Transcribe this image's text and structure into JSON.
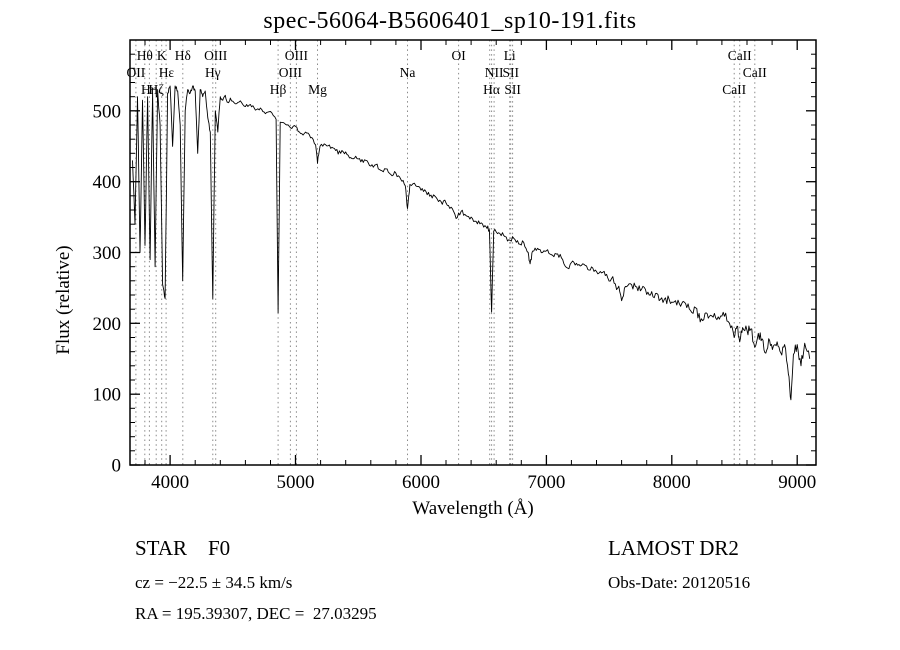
{
  "chart_data": {
    "type": "line",
    "title": "spec-56064-B5606401_sp10-191.fits",
    "xlabel": "Wavelength (Å)",
    "ylabel": "Flux (relative)",
    "xlim": [
      3680,
      9150
    ],
    "ylim": [
      0,
      600
    ],
    "x_ticks": [
      4000,
      5000,
      6000,
      7000,
      8000,
      9000
    ],
    "y_ticks": [
      0,
      100,
      200,
      300,
      400,
      500
    ],
    "x_minor_step": 200,
    "y_minor_step": 20,
    "grid": false,
    "line_color": "#000000",
    "marker_line_color": "#8a8a8a",
    "legend": "none",
    "noise_texture": {
      "blue": 2.5,
      "mid": 3.5,
      "red": 7
    },
    "spectral_lines": [
      3727,
      3798,
      3835,
      3889,
      3933,
      3968,
      4101,
      4340,
      4363,
      4861,
      4959,
      5007,
      5175,
      5893,
      6300,
      6548,
      6563,
      6583,
      6708,
      6716,
      6731,
      8498,
      8542,
      8662
    ],
    "line_labels": [
      {
        "text": "Hθ",
        "wavelength": 3798,
        "row": 1
      },
      {
        "text": "K",
        "wavelength": 3933,
        "row": 1
      },
      {
        "text": "Hδ",
        "wavelength": 4101,
        "row": 1
      },
      {
        "text": "OIII",
        "wavelength": 4363,
        "row": 1
      },
      {
        "text": "OIII",
        "wavelength": 5007,
        "row": 1
      },
      {
        "text": "OI",
        "wavelength": 6300,
        "row": 1
      },
      {
        "text": "Li",
        "wavelength": 6708,
        "row": 1
      },
      {
        "text": "CaII",
        "wavelength": 8542,
        "row": 1
      },
      {
        "text": "OII",
        "wavelength": 3727,
        "row": 2
      },
      {
        "text": "Hε",
        "wavelength": 3970,
        "row": 2
      },
      {
        "text": "Hγ",
        "wavelength": 4340,
        "row": 2
      },
      {
        "text": "OIII",
        "wavelength": 4959,
        "row": 2
      },
      {
        "text": "Na",
        "wavelength": 5893,
        "row": 2
      },
      {
        "text": "NII",
        "wavelength": 6583,
        "row": 2
      },
      {
        "text": "SII",
        "wavelength": 6716,
        "row": 2
      },
      {
        "text": "CaII",
        "wavelength": 8662,
        "row": 2
      },
      {
        "text": "Hη",
        "wavelength": 3835,
        "row": 3
      },
      {
        "text": "Hζ",
        "wavelength": 3889,
        "row": 3
      },
      {
        "text": "Hβ",
        "wavelength": 4861,
        "row": 3
      },
      {
        "text": "Mg",
        "wavelength": 5175,
        "row": 3
      },
      {
        "text": "Hα",
        "wavelength": 6563,
        "row": 3
      },
      {
        "text": "SII",
        "wavelength": 6731,
        "row": 3
      },
      {
        "text": "CaII",
        "wavelength": 8498,
        "row": 3
      }
    ],
    "points": [
      [
        3700,
        430
      ],
      [
        3720,
        340
      ],
      [
        3740,
        520
      ],
      [
        3760,
        300
      ],
      [
        3780,
        515
      ],
      [
        3800,
        310
      ],
      [
        3820,
        520
      ],
      [
        3840,
        290
      ],
      [
        3860,
        525
      ],
      [
        3880,
        280
      ],
      [
        3900,
        530
      ],
      [
        3920,
        480
      ],
      [
        3940,
        255
      ],
      [
        3960,
        235
      ],
      [
        3980,
        525
      ],
      [
        4000,
        535
      ],
      [
        4020,
        450
      ],
      [
        4040,
        535
      ],
      [
        4060,
        528
      ],
      [
        4080,
        480
      ],
      [
        4100,
        260
      ],
      [
        4120,
        500
      ],
      [
        4140,
        530
      ],
      [
        4160,
        525
      ],
      [
        4180,
        535
      ],
      [
        4200,
        528
      ],
      [
        4220,
        440
      ],
      [
        4240,
        530
      ],
      [
        4260,
        520
      ],
      [
        4280,
        528
      ],
      [
        4300,
        490
      ],
      [
        4320,
        470
      ],
      [
        4340,
        235
      ],
      [
        4360,
        500
      ],
      [
        4380,
        470
      ],
      [
        4400,
        520
      ],
      [
        4420,
        515
      ],
      [
        4440,
        522
      ],
      [
        4460,
        512
      ],
      [
        4480,
        518
      ],
      [
        4520,
        510
      ],
      [
        4560,
        514
      ],
      [
        4600,
        506
      ],
      [
        4640,
        509
      ],
      [
        4680,
        501
      ],
      [
        4720,
        504
      ],
      [
        4760,
        496
      ],
      [
        4800,
        499
      ],
      [
        4845,
        488
      ],
      [
        4861,
        215
      ],
      [
        4878,
        484
      ],
      [
        4920,
        481
      ],
      [
        4960,
        476
      ],
      [
        5000,
        478
      ],
      [
        5040,
        468
      ],
      [
        5080,
        470
      ],
      [
        5120,
        462
      ],
      [
        5160,
        452
      ],
      [
        5175,
        426
      ],
      [
        5195,
        450
      ],
      [
        5240,
        452
      ],
      [
        5280,
        447
      ],
      [
        5320,
        444
      ],
      [
        5360,
        440
      ],
      [
        5400,
        442
      ],
      [
        5440,
        434
      ],
      [
        5480,
        436
      ],
      [
        5520,
        428
      ],
      [
        5560,
        430
      ],
      [
        5600,
        422
      ],
      [
        5640,
        424
      ],
      [
        5680,
        416
      ],
      [
        5720,
        418
      ],
      [
        5760,
        410
      ],
      [
        5800,
        412
      ],
      [
        5840,
        403
      ],
      [
        5875,
        394
      ],
      [
        5893,
        362
      ],
      [
        5912,
        396
      ],
      [
        5960,
        394
      ],
      [
        6000,
        388
      ],
      [
        6040,
        386
      ],
      [
        6080,
        381
      ],
      [
        6120,
        378
      ],
      [
        6160,
        372
      ],
      [
        6200,
        370
      ],
      [
        6240,
        364
      ],
      [
        6280,
        348
      ],
      [
        6320,
        358
      ],
      [
        6360,
        352
      ],
      [
        6400,
        350
      ],
      [
        6440,
        344
      ],
      [
        6480,
        342
      ],
      [
        6520,
        336
      ],
      [
        6546,
        332
      ],
      [
        6563,
        216
      ],
      [
        6580,
        330
      ],
      [
        6620,
        328
      ],
      [
        6660,
        324
      ],
      [
        6700,
        318
      ],
      [
        6740,
        320
      ],
      [
        6780,
        312
      ],
      [
        6820,
        314
      ],
      [
        6855,
        300
      ],
      [
        6870,
        284
      ],
      [
        6890,
        302
      ],
      [
        6930,
        306
      ],
      [
        6970,
        300
      ],
      [
        7010,
        304
      ],
      [
        7050,
        296
      ],
      [
        7090,
        298
      ],
      [
        7130,
        290
      ],
      [
        7170,
        278
      ],
      [
        7210,
        288
      ],
      [
        7250,
        282
      ],
      [
        7290,
        284
      ],
      [
        7330,
        276
      ],
      [
        7370,
        278
      ],
      [
        7410,
        270
      ],
      [
        7450,
        272
      ],
      [
        7490,
        264
      ],
      [
        7530,
        266
      ],
      [
        7570,
        250
      ],
      [
        7600,
        232
      ],
      [
        7630,
        252
      ],
      [
        7670,
        256
      ],
      [
        7710,
        252
      ],
      [
        7750,
        246
      ],
      [
        7790,
        248
      ],
      [
        7830,
        240
      ],
      [
        7870,
        242
      ],
      [
        7910,
        234
      ],
      [
        7950,
        236
      ],
      [
        7990,
        228
      ],
      [
        8030,
        232
      ],
      [
        8070,
        224
      ],
      [
        8110,
        228
      ],
      [
        8150,
        218
      ],
      [
        8190,
        222
      ],
      [
        8227,
        202
      ],
      [
        8265,
        214
      ],
      [
        8300,
        210
      ],
      [
        8340,
        214
      ],
      [
        8380,
        206
      ],
      [
        8420,
        210
      ],
      [
        8460,
        200
      ],
      [
        8498,
        180
      ],
      [
        8520,
        196
      ],
      [
        8542,
        174
      ],
      [
        8565,
        194
      ],
      [
        8600,
        190
      ],
      [
        8630,
        192
      ],
      [
        8662,
        166
      ],
      [
        8690,
        186
      ],
      [
        8720,
        178
      ],
      [
        8750,
        158
      ],
      [
        8780,
        176
      ],
      [
        8810,
        168
      ],
      [
        8840,
        174
      ],
      [
        8870,
        158
      ],
      [
        8900,
        170
      ],
      [
        8930,
        128
      ],
      [
        8950,
        92
      ],
      [
        8970,
        156
      ],
      [
        9000,
        170
      ],
      [
        9030,
        140
      ],
      [
        9060,
        172
      ],
      [
        9100,
        150
      ]
    ]
  },
  "annotations": {
    "object_type": "STAR    F0",
    "cz": "cz = −22.5 ± 34.5 km/s",
    "radec": "RA = 195.39307, DEC =  27.03295",
    "survey": "LAMOST DR2",
    "obs_date": "Obs-Date: 20120516"
  }
}
